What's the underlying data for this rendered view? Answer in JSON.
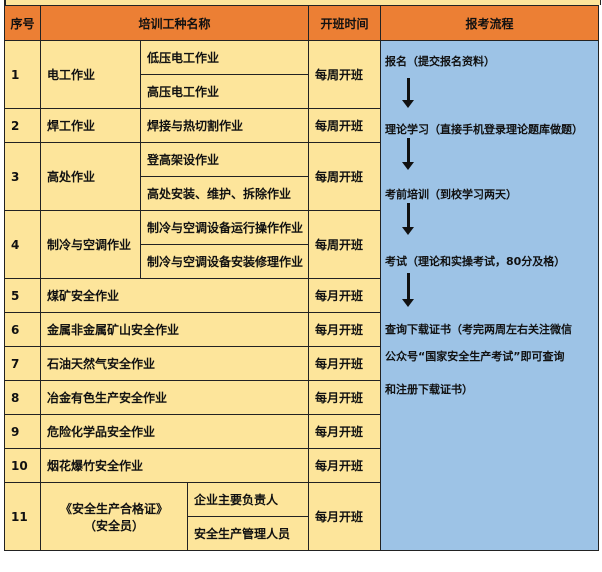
{
  "header": {
    "seq": "序号",
    "name": "培训工种名称",
    "time": "开班时间",
    "flow": "报考流程"
  },
  "rows": [
    {
      "no": "1",
      "name": "电工作业",
      "subs": [
        "低压电工作业",
        "高压电工作业"
      ],
      "time": "每周开班"
    },
    {
      "no": "2",
      "name": "焊工作业",
      "subs": [
        "焊接与热切割作业"
      ],
      "time": "每周开班"
    },
    {
      "no": "3",
      "name": "高处作业",
      "subs": [
        "登高架设作业",
        "高处安装、维护、拆除作业"
      ],
      "time": "每周开班"
    },
    {
      "no": "4",
      "name": "制冷与空调作业",
      "subs": [
        "制冷与空调设备运行操作作业",
        "制冷与空调设备安装修理作业"
      ],
      "time": "每周开班"
    },
    {
      "no": "5",
      "name": "煤矿安全作业",
      "time": "每月开班"
    },
    {
      "no": "6",
      "name": "金属非金属矿山安全作业",
      "time": "每月开班"
    },
    {
      "no": "7",
      "name": "石油天然气安全作业",
      "time": "每月开班"
    },
    {
      "no": "8",
      "name": "冶金有色生产安全作业",
      "time": "每月开班"
    },
    {
      "no": "9",
      "name": "危险化学品安全作业",
      "time": "每月开班"
    },
    {
      "no": "10",
      "name": "烟花爆竹安全作业",
      "time": "每月开班"
    },
    {
      "no": "11",
      "name": "《安全生产合格证》",
      "name2": "（安全员）",
      "subs": [
        "企业主要负责人",
        "安全生产管理人员"
      ],
      "time": "每月开班"
    }
  ],
  "flow": {
    "step1": "报名（提交报名资料）",
    "step2": "理论学习（直接手机登录理论题库做题）",
    "step3": "考前培训（到校学习两天）",
    "step4": "考试（理论和实操考试，80分及格）",
    "step5a": "查询下载证书（考完两周左右关注微信",
    "step5b": "公众号“国家安全生产考试”即可查询",
    "step5c": "和注册下载证书）"
  }
}
